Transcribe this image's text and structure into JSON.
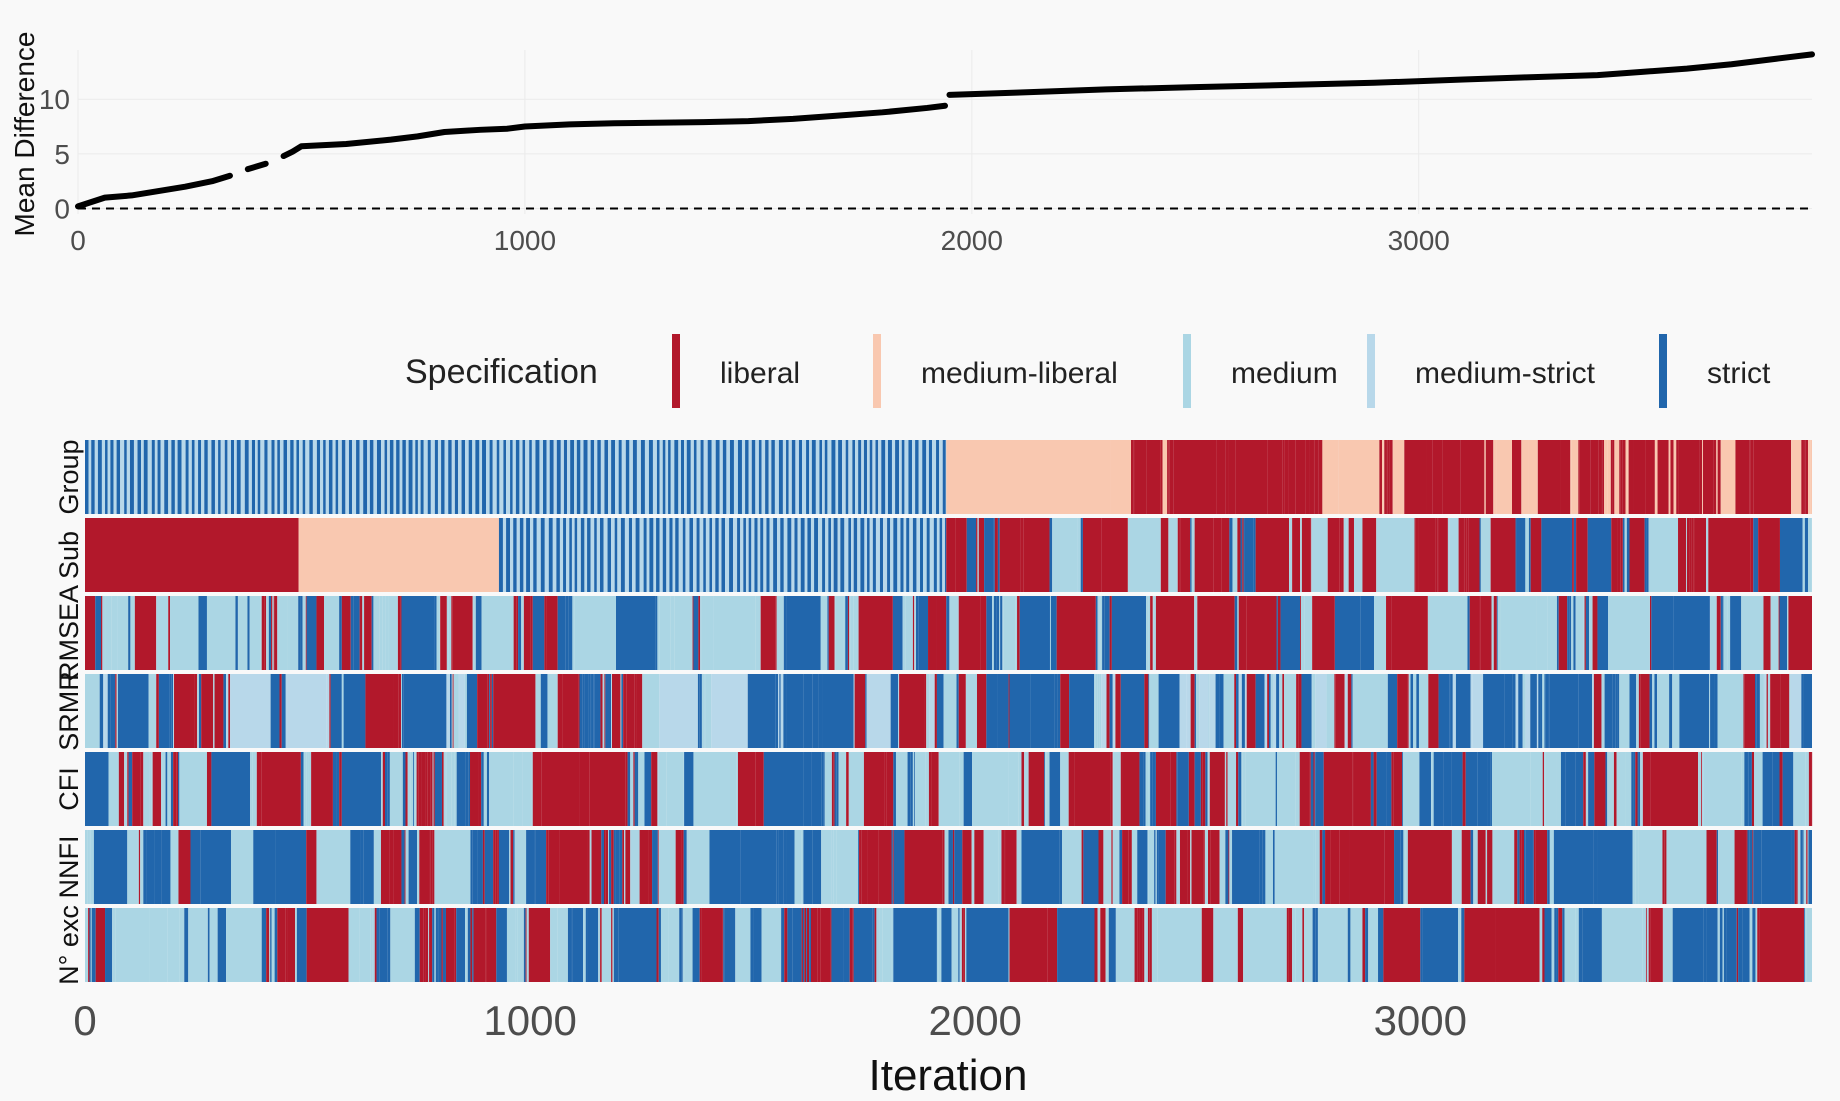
{
  "colors": {
    "background": "#f9f9f9",
    "line": "#000000",
    "gridline": "#ebebeb",
    "liberal": "#b2182b",
    "medium-liberal": "#f9c8b0",
    "medium": "#abd6e4",
    "medium-strict": "#b8d8ea",
    "strict": "#2166ac"
  },
  "chart_data": [
    {
      "type": "line",
      "title": "",
      "xlabel": "",
      "ylabel": "Mean Difference",
      "xlim": [
        0,
        3880
      ],
      "ylim": [
        -0.5,
        14.5
      ],
      "xticks": [
        0,
        1000,
        2000,
        3000
      ],
      "yticks": [
        0,
        5,
        10
      ],
      "reference_line": {
        "y": 0,
        "style": "dashed"
      },
      "series": [
        {
          "x": [
            0,
            30,
            60,
            120,
            180,
            240,
            300,
            340,
            380,
            420,
            460,
            480,
            500,
            600,
            700,
            760,
            820,
            900,
            960,
            1000,
            1100,
            1200,
            1400,
            1500,
            1600,
            1700,
            1800,
            1900,
            1940,
            1950,
            2100,
            2300,
            2500,
            2700,
            2900,
            3100,
            3240,
            3400,
            3500,
            3600,
            3700,
            3800,
            3880
          ],
          "y": [
            0.2,
            0.6,
            1.0,
            1.2,
            1.6,
            2.0,
            2.5,
            3.0,
            3.6,
            4.1,
            4.8,
            5.2,
            5.7,
            5.9,
            6.3,
            6.6,
            7.0,
            7.2,
            7.3,
            7.5,
            7.7,
            7.8,
            7.9,
            8.0,
            8.2,
            8.5,
            8.8,
            9.2,
            9.4,
            10.4,
            10.6,
            10.9,
            11.1,
            11.3,
            11.5,
            11.8,
            12.0,
            12.2,
            12.5,
            12.8,
            13.2,
            13.7,
            14.1
          ]
        }
      ]
    },
    {
      "type": "heatmap",
      "title": "",
      "xlabel": "Iteration",
      "ylabel": "",
      "xlim": [
        0,
        3880
      ],
      "xticks": [
        0,
        1000,
        2000,
        3000
      ],
      "rows": [
        "Group",
        "Sub",
        "RMSEA",
        "SRMR",
        "CFI",
        "NNFI",
        "N° exc"
      ],
      "categories": [
        "liberal",
        "medium-liberal",
        "medium",
        "medium-strict",
        "strict"
      ],
      "legend": {
        "title": "Specification",
        "position": "top"
      },
      "row_blocks": [
        {
          "row": "Group",
          "blocks": [
            {
              "from": 0,
              "to": 1935,
              "pattern": "alternating",
              "values": [
                "strict",
                "medium-strict"
              ]
            },
            {
              "from": 1935,
              "to": 2305,
              "value": "medium-liberal"
            },
            {
              "from": 2305,
              "to": 3880,
              "pattern": "mixed",
              "values": [
                "liberal",
                "liberal",
                "liberal",
                "medium-liberal"
              ]
            }
          ]
        },
        {
          "row": "Sub",
          "blocks": [
            {
              "from": 0,
              "to": 480,
              "value": "liberal"
            },
            {
              "from": 480,
              "to": 930,
              "value": "medium-liberal"
            },
            {
              "from": 930,
              "to": 1935,
              "pattern": "alternating",
              "values": [
                "strict",
                "medium-strict"
              ]
            },
            {
              "from": 1935,
              "to": 3880,
              "pattern": "mixed",
              "values": [
                "liberal",
                "strict",
                "medium",
                "liberal"
              ]
            }
          ]
        },
        {
          "row": "RMSEA",
          "blocks": [
            {
              "from": 0,
              "to": 3880,
              "pattern": "mixed",
              "values": [
                "liberal",
                "strict",
                "medium"
              ]
            }
          ]
        },
        {
          "row": "SRMR",
          "blocks": [
            {
              "from": 0,
              "to": 3880,
              "pattern": "mixed",
              "values": [
                "strict",
                "medium",
                "liberal",
                "strict",
                "medium-strict"
              ]
            }
          ]
        },
        {
          "row": "CFI",
          "blocks": [
            {
              "from": 0,
              "to": 3880,
              "pattern": "mixed",
              "values": [
                "liberal",
                "strict",
                "medium"
              ]
            }
          ]
        },
        {
          "row": "NNFI",
          "blocks": [
            {
              "from": 0,
              "to": 3880,
              "pattern": "mixed",
              "values": [
                "liberal",
                "strict",
                "medium"
              ]
            }
          ]
        },
        {
          "row": "N° exc",
          "blocks": [
            {
              "from": 0,
              "to": 3880,
              "pattern": "mixed",
              "values": [
                "liberal",
                "strict",
                "medium"
              ]
            }
          ]
        }
      ]
    }
  ]
}
